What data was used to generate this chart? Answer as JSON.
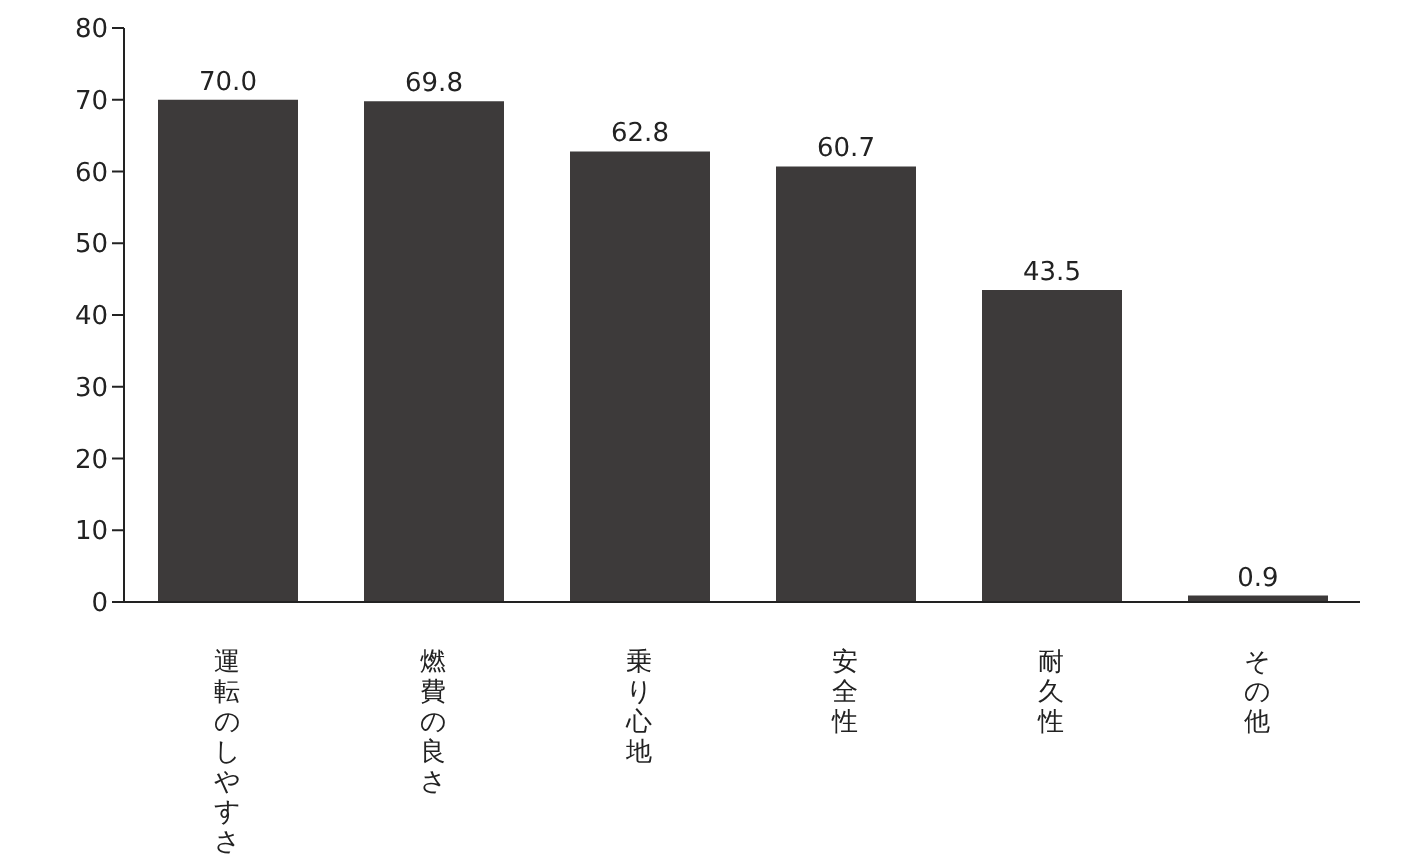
{
  "chart_data": {
    "type": "bar",
    "categories": [
      "運転のしやすさ",
      "燃費の良さ",
      "乗り心地",
      "安全性",
      "耐久性",
      "その他"
    ],
    "values": [
      70.0,
      69.8,
      62.8,
      60.7,
      43.5,
      0.9
    ],
    "color": "#3d3a3a",
    "ylim": [
      0,
      80
    ],
    "yticks": [
      0,
      10,
      20,
      30,
      40,
      50,
      60,
      70,
      80
    ],
    "grid": false,
    "value_labels": [
      "70.0",
      "69.8",
      "62.8",
      "60.7",
      "43.5",
      "0.9"
    ]
  }
}
